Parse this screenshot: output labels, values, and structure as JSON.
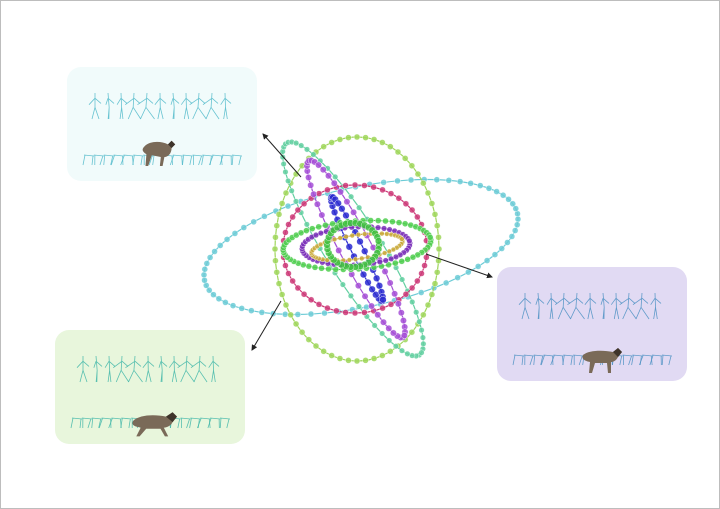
{
  "colors": {
    "background": "#ffffff",
    "frame_border": "#bdbdbd",
    "panel_top_left": "#f1fbfb",
    "panel_bottom_left": "#e8f6dc",
    "panel_right": "#e1daf3",
    "skeleton_cyan": "#4fb9c9",
    "skeleton_teal": "#3fb6a8",
    "skeleton_blue": "#4a8fc2",
    "wolf_body": "#7a6a58",
    "wolf_dark": "#3e342b",
    "arrow": "#222222"
  },
  "orbits": [
    {
      "name": "orbit-cyan-large",
      "color": "#6ccbd6"
    },
    {
      "name": "orbit-lime-vertical",
      "color": "#9fd65a"
    },
    {
      "name": "orbit-mint-tilted",
      "color": "#62cfa0"
    },
    {
      "name": "orbit-magenta",
      "color": "#cc3a78"
    },
    {
      "name": "orbit-violet-tilted",
      "color": "#a44fd6"
    },
    {
      "name": "orbit-blue-axis",
      "color": "#2a2ad0"
    },
    {
      "name": "orbit-green-wide",
      "color": "#4fce4f"
    },
    {
      "name": "orbit-purple-inner",
      "color": "#7a2fb8"
    },
    {
      "name": "orbit-gold-inner",
      "color": "#c9a93a"
    },
    {
      "name": "orbit-green-core",
      "color": "#3fbf3f"
    }
  ],
  "panels": [
    {
      "name": "panel-top-left",
      "skeleton_style": "pose-sequence-cyan"
    },
    {
      "name": "panel-bottom-left",
      "skeleton_style": "pose-sequence-teal"
    },
    {
      "name": "panel-right",
      "skeleton_style": "pose-sequence-blue"
    }
  ]
}
